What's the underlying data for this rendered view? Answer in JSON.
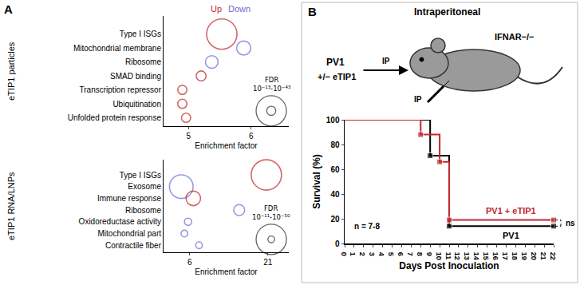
{
  "chart_data": [
    {
      "type": "scatter",
      "panel": "A",
      "title": "eTIP1 particles",
      "categories": [
        "Type I ISGs",
        "Mitochondrial membrane",
        "Ribosome",
        "SMAD binding",
        "Transcription repressor",
        "Ubiquitination",
        "Unfolded protein response"
      ],
      "series": [
        {
          "name": "Up",
          "color": "#c1272d",
          "values": [
            5.53,
            null,
            null,
            5.2,
            4.9,
            4.9,
            4.96
          ]
        },
        {
          "name": "Down",
          "color": "#6b6bd6",
          "values": [
            null,
            5.88,
            5.37,
            null,
            null,
            null,
            null
          ]
        }
      ],
      "sizes": [
        43,
        20,
        18,
        14,
        13,
        13,
        13
      ],
      "size_key": {
        "label": "FDR",
        "text": "10⁻¹³-10⁻⁴³",
        "values": [
          13,
          43
        ]
      },
      "xlabel": "Enrichment factor",
      "xlim": [
        4.6,
        6.6
      ],
      "xticks": [
        5,
        6
      ],
      "legend": "top",
      "marker": "open circle",
      "grid": false
    },
    {
      "type": "scatter",
      "title": "eTIP1 RNA/LNPs",
      "categories": [
        "Type I ISGs",
        "Exosome",
        "Immune response",
        "Ribosome",
        "Oxidoreductase activity",
        "Mitochondrial part",
        "Contractile fiber"
      ],
      "values": [
        20.7,
        4.4,
        6.7,
        15.5,
        5.7,
        5.0,
        7.8
      ],
      "colors": [
        "#c1272d",
        "#6b6bd6",
        "#c1272d",
        "#6b6bd6",
        "#6b6bd6",
        "#6b6bd6",
        "#6b6bd6"
      ],
      "sizes": [
        50,
        39,
        24,
        18,
        12,
        11,
        11
      ],
      "size_key": {
        "label": "FDR",
        "text": "10⁻¹¹-10⁻⁵⁰",
        "values": [
          11,
          50
        ]
      },
      "xlabel": "Enrichment factor",
      "xlim": [
        1,
        25
      ],
      "xticks": [
        6,
        21
      ],
      "marker": "open circle",
      "grid": false
    },
    {
      "type": "line",
      "panel": "B",
      "title": "Intraperitoneal",
      "series": [
        {
          "name": "PV1",
          "color": "#000000",
          "x": [
            0,
            9,
            11,
            22
          ],
          "values": [
            100,
            71,
            14,
            14
          ]
        },
        {
          "name": "PV1 + eTIP1",
          "color": "#c1272d",
          "x": [
            0,
            8,
            10,
            11,
            22
          ],
          "values": [
            100,
            88,
            66,
            19,
            19
          ]
        }
      ],
      "xlabel": "Days Post Inoculation",
      "ylabel": "Survival (%)",
      "xlim": [
        0,
        22
      ],
      "xticks": [
        0,
        1,
        2,
        3,
        4,
        5,
        6,
        7,
        8,
        9,
        10,
        11,
        12,
        13,
        14,
        15,
        16,
        17,
        18,
        19,
        20,
        21,
        22
      ],
      "ylim": [
        0,
        100
      ],
      "yticks": [
        0,
        20,
        40,
        60,
        80,
        100
      ],
      "annotations": [
        "PV1",
        "+/− eTIP1",
        "IP",
        "IFNAR−/−",
        "IP",
        "n = 7-8",
        "ns"
      ],
      "line_style": "step",
      "marker": "square",
      "grid": false
    }
  ]
}
